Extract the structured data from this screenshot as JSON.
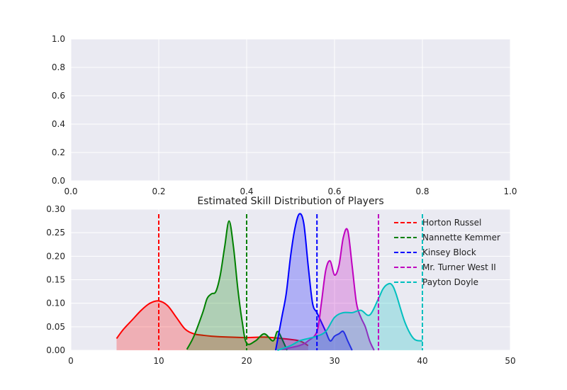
{
  "chart_data": [
    {
      "type": "line",
      "title": "",
      "xlabel": "",
      "ylabel": "",
      "xlim": [
        0,
        1
      ],
      "ylim": [
        0,
        1
      ],
      "xticks": [
        "0.0",
        "0.2",
        "0.4",
        "0.6",
        "0.8",
        "1.0"
      ],
      "yticks": [
        "0.0",
        "0.2",
        "0.4",
        "0.6",
        "0.8",
        "1.0"
      ],
      "grid": true,
      "series": []
    },
    {
      "type": "area",
      "title": "Estimated Skill Distribution of Players",
      "xlabel": "",
      "ylabel": "",
      "xlim": [
        0,
        50
      ],
      "ylim": [
        0,
        0.3
      ],
      "xticks": [
        "0",
        "10",
        "20",
        "30",
        "40",
        "50"
      ],
      "yticks": [
        "0.00",
        "0.05",
        "0.10",
        "0.15",
        "0.20",
        "0.25",
        "0.30"
      ],
      "grid": true,
      "legend_placement": "top-right",
      "series": [
        {
          "name": "Horton Russel",
          "color": "#ff0000",
          "vline": 10,
          "x": [
            5.2,
            6,
            7,
            8,
            9,
            10,
            11,
            12,
            13,
            14,
            15,
            16,
            18,
            20,
            22,
            24,
            26,
            27
          ],
          "y": [
            0.025,
            0.045,
            0.065,
            0.085,
            0.1,
            0.105,
            0.095,
            0.07,
            0.045,
            0.035,
            0.032,
            0.03,
            0.028,
            0.027,
            0.028,
            0.025,
            0.02,
            0.01
          ]
        },
        {
          "name": "Nannette Kemmer",
          "color": "#008000",
          "vline": 20,
          "x": [
            13.2,
            14,
            15,
            15.5,
            16,
            16.5,
            17,
            17.5,
            18,
            18.5,
            19,
            19.5,
            20,
            21,
            22,
            23,
            23.5,
            24,
            24.6
          ],
          "y": [
            0.002,
            0.03,
            0.08,
            0.11,
            0.12,
            0.125,
            0.16,
            0.22,
            0.275,
            0.22,
            0.13,
            0.06,
            0.015,
            0.02,
            0.035,
            0.02,
            0.04,
            0.025,
            0.0
          ]
        },
        {
          "name": "Kinsey Block",
          "color": "#0000ff",
          "vline": 28,
          "x": [
            23.3,
            24,
            24.5,
            25,
            25.5,
            26,
            26.5,
            27,
            27.5,
            28,
            28.5,
            29,
            29.5,
            30,
            30.5,
            31,
            31.5,
            32
          ],
          "y": [
            0.0,
            0.07,
            0.12,
            0.2,
            0.26,
            0.29,
            0.27,
            0.18,
            0.1,
            0.08,
            0.06,
            0.04,
            0.02,
            0.03,
            0.035,
            0.04,
            0.02,
            0.0
          ]
        },
        {
          "name": "Mr. Turner West II",
          "color": "#bf00bf",
          "vline": 35,
          "x": [
            24,
            26,
            27,
            28,
            28.5,
            29,
            29.5,
            30,
            30.5,
            31,
            31.5,
            32,
            32.5,
            33,
            33.5,
            34,
            34.5
          ],
          "y": [
            0.002,
            0.01,
            0.02,
            0.04,
            0.1,
            0.17,
            0.19,
            0.16,
            0.18,
            0.24,
            0.255,
            0.18,
            0.1,
            0.07,
            0.05,
            0.02,
            0.0
          ]
        },
        {
          "name": "Payton Doyle",
          "color": "#00bfbf",
          "vline": 40,
          "x": [
            23.5,
            25,
            26,
            27,
            28,
            29,
            30,
            31,
            32,
            33,
            34,
            35,
            35.5,
            36,
            36.5,
            37,
            38,
            39,
            40
          ],
          "y": [
            0.0,
            0.01,
            0.02,
            0.025,
            0.03,
            0.04,
            0.07,
            0.08,
            0.08,
            0.085,
            0.075,
            0.11,
            0.13,
            0.14,
            0.14,
            0.12,
            0.06,
            0.025,
            0.02
          ]
        }
      ]
    }
  ]
}
